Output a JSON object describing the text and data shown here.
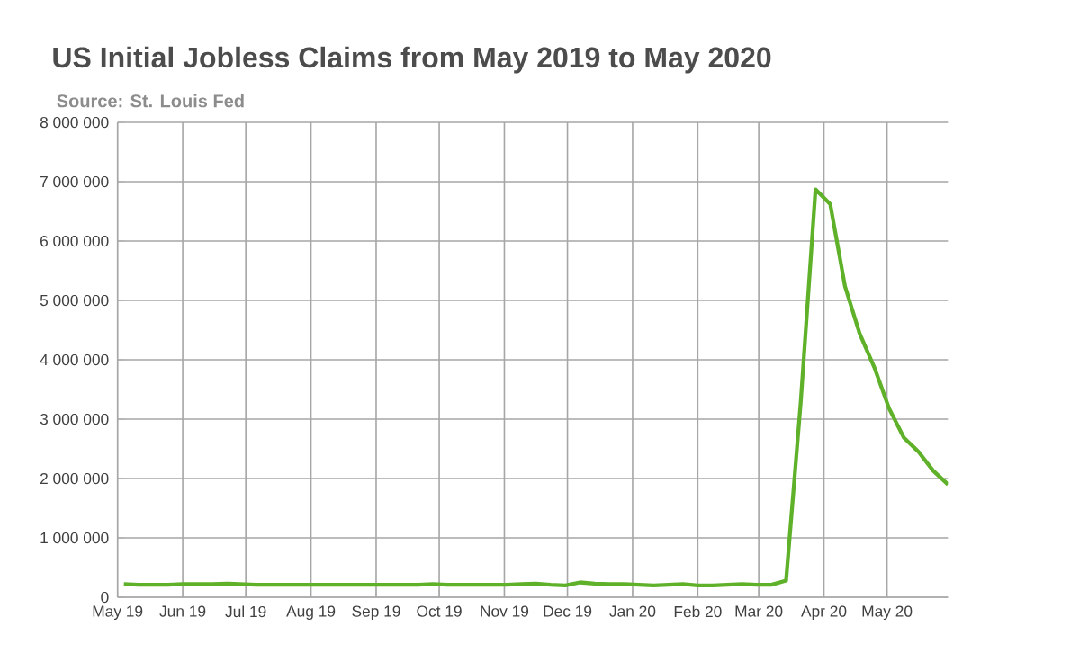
{
  "chart_data": {
    "type": "line",
    "title": "US Initial Jobless Claims from May 2019 to May 2020",
    "annotations": [
      "Source: St. Louis Fed"
    ],
    "x": [
      "2019-05-04",
      "2019-05-11",
      "2019-05-18",
      "2019-05-25",
      "2019-06-01",
      "2019-06-08",
      "2019-06-15",
      "2019-06-22",
      "2019-06-29",
      "2019-07-06",
      "2019-07-13",
      "2019-07-20",
      "2019-07-27",
      "2019-08-03",
      "2019-08-10",
      "2019-08-17",
      "2019-08-24",
      "2019-08-31",
      "2019-09-07",
      "2019-09-14",
      "2019-09-21",
      "2019-09-28",
      "2019-10-05",
      "2019-10-12",
      "2019-10-19",
      "2019-10-26",
      "2019-11-02",
      "2019-11-09",
      "2019-11-16",
      "2019-11-23",
      "2019-11-30",
      "2019-12-07",
      "2019-12-14",
      "2019-12-21",
      "2019-12-28",
      "2020-01-04",
      "2020-01-11",
      "2020-01-18",
      "2020-01-25",
      "2020-02-01",
      "2020-02-08",
      "2020-02-15",
      "2020-02-22",
      "2020-02-29",
      "2020-03-07",
      "2020-03-14",
      "2020-03-21",
      "2020-03-28",
      "2020-04-04",
      "2020-04-11",
      "2020-04-18",
      "2020-04-25",
      "2020-05-02",
      "2020-05-09",
      "2020-05-16",
      "2020-05-23",
      "2020-05-30"
    ],
    "values": [
      220000,
      210000,
      210000,
      210000,
      220000,
      220000,
      220000,
      230000,
      220000,
      210000,
      210000,
      210000,
      210000,
      210000,
      210000,
      210000,
      210000,
      210000,
      210000,
      210000,
      210000,
      220000,
      210000,
      210000,
      210000,
      210000,
      210000,
      220000,
      230000,
      210000,
      200000,
      250000,
      230000,
      220000,
      220000,
      210000,
      200000,
      210000,
      220000,
      200000,
      200000,
      210000,
      220000,
      210000,
      210000,
      280000,
      3300000,
      6870000,
      6620000,
      5240000,
      4440000,
      3870000,
      3180000,
      2690000,
      2450000,
      2130000,
      1900000
    ],
    "color": "#5fb12a",
    "line_style": "solid",
    "marker": "none",
    "grid": true,
    "xlim": [
      "2019-05-01",
      "2020-05-30"
    ],
    "xticks": [
      {
        "value": "2019-05-01",
        "label": "May 19"
      },
      {
        "value": "2019-06-01",
        "label": "Jun 19"
      },
      {
        "value": "2019-07-01",
        "label": "Jul 19"
      },
      {
        "value": "2019-08-01",
        "label": "Aug 19"
      },
      {
        "value": "2019-09-01",
        "label": "Sep 19"
      },
      {
        "value": "2019-10-01",
        "label": "Oct 19"
      },
      {
        "value": "2019-11-01",
        "label": "Nov 19"
      },
      {
        "value": "2019-12-01",
        "label": "Dec 19"
      },
      {
        "value": "2020-01-01",
        "label": "Jan 20"
      },
      {
        "value": "2020-02-01",
        "label": "Feb 20"
      },
      {
        "value": "2020-03-01",
        "label": "Mar 20"
      },
      {
        "value": "2020-04-01",
        "label": "Apr 20"
      },
      {
        "value": "2020-05-01",
        "label": "May 20"
      }
    ],
    "ylim": [
      0,
      8000000
    ],
    "yticks": [
      0,
      {
        "value": 1000000,
        "label": "1 000 000"
      },
      {
        "value": 2000000,
        "label": "2 000 000"
      },
      {
        "value": 3000000,
        "label": "3 000 000"
      },
      {
        "value": 4000000,
        "label": "4 000 000"
      },
      {
        "value": 5000000,
        "label": "5 000 000"
      },
      {
        "value": 6000000,
        "label": "6 000 000"
      },
      {
        "value": 7000000,
        "label": "7 000 000"
      },
      {
        "value": 8000000,
        "label": "8 000 000"
      }
    ]
  }
}
